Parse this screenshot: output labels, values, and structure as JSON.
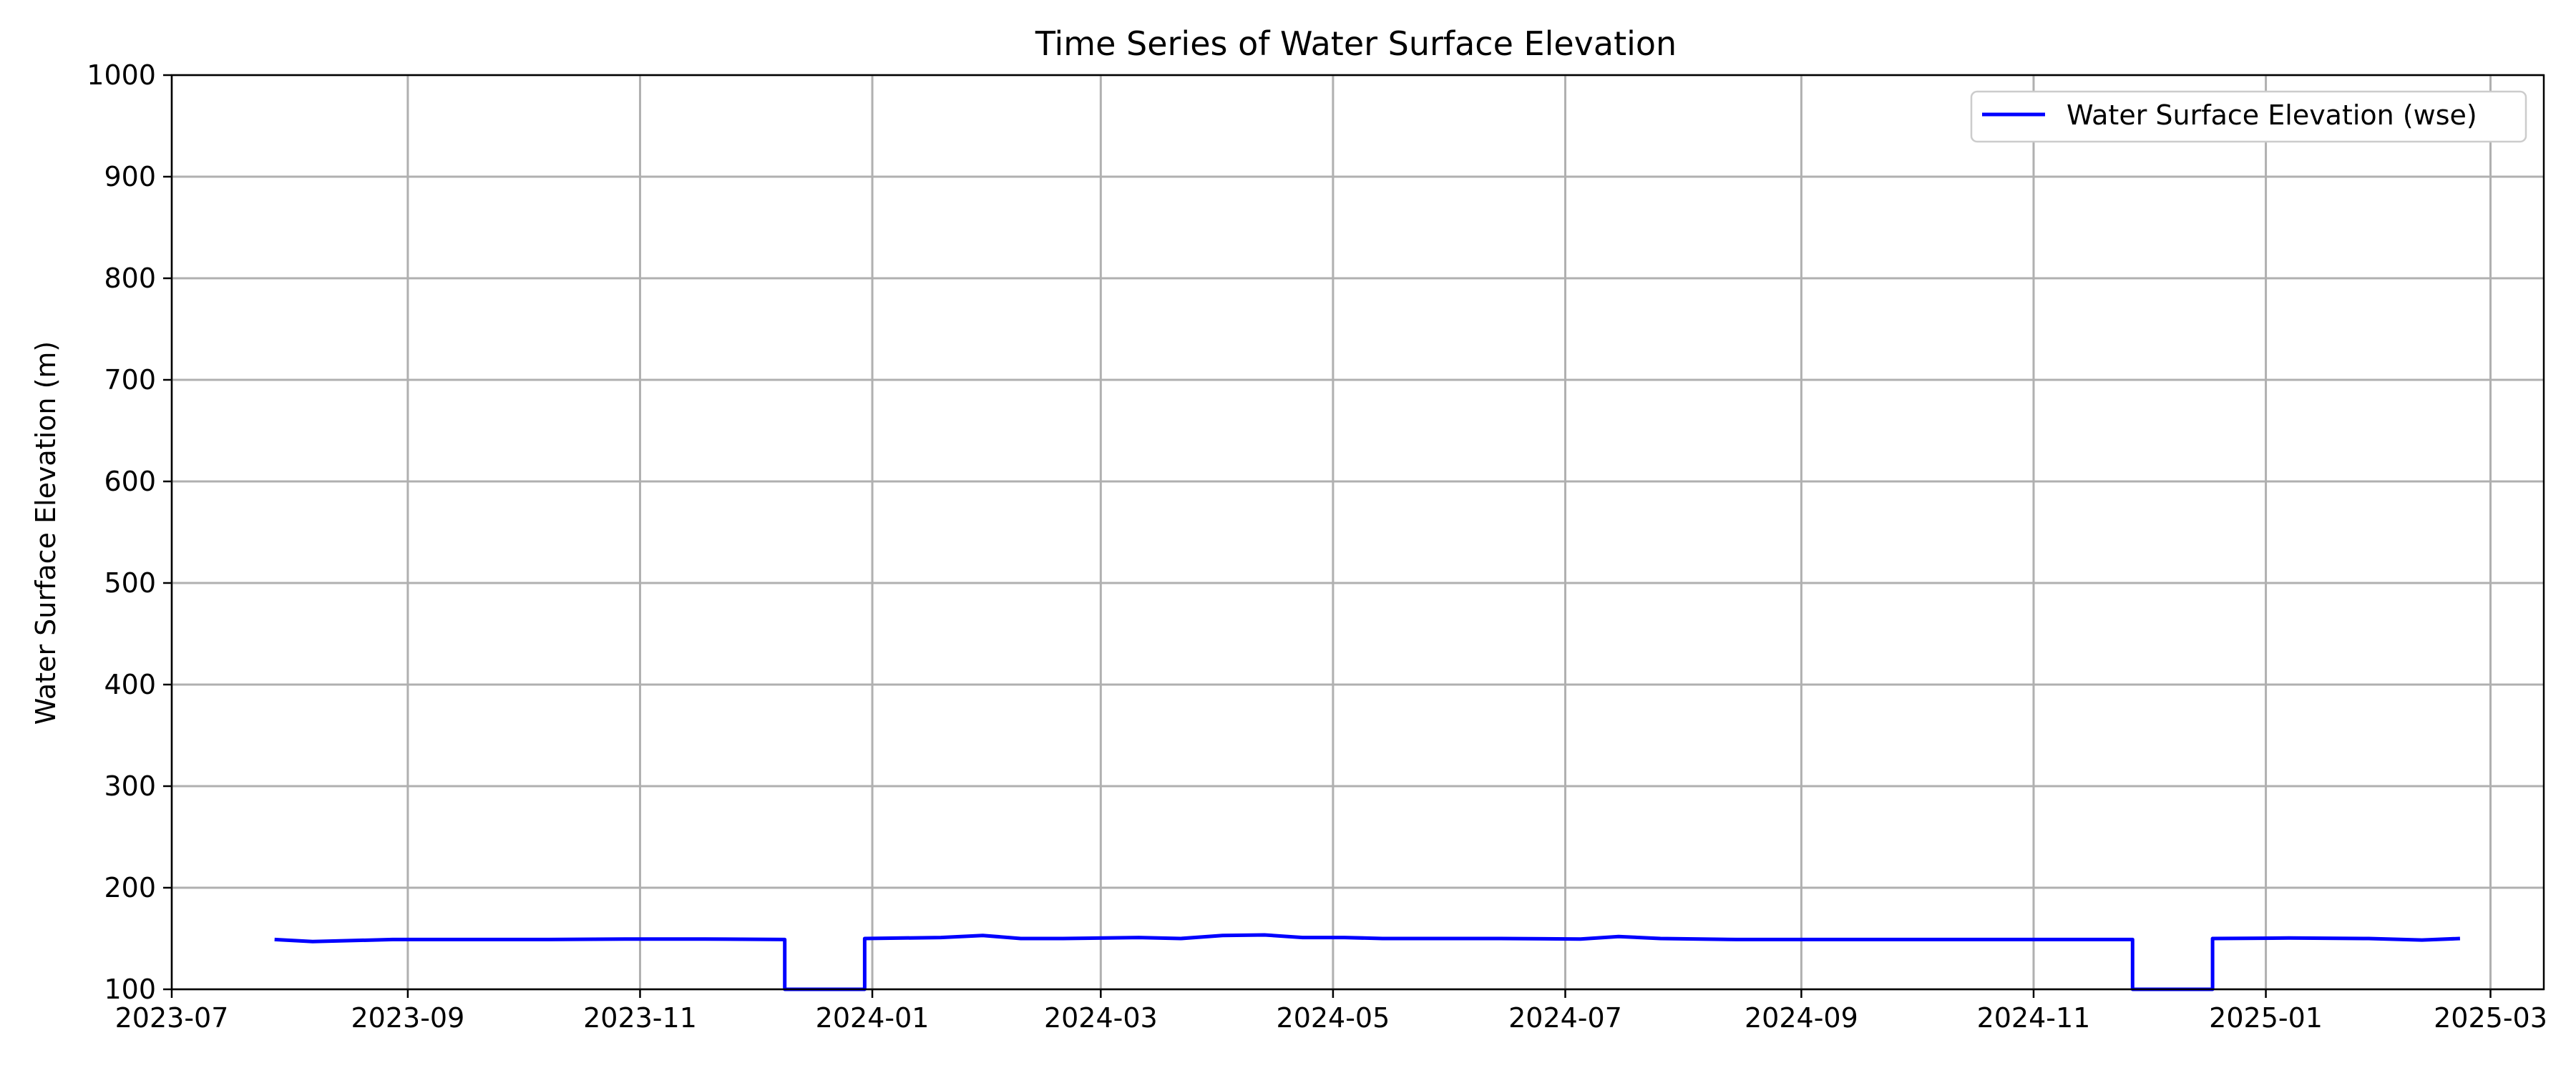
{
  "chart_data": {
    "type": "line",
    "title": "Time Series of Water Surface Elevation",
    "xlabel": "",
    "ylabel": "Water Surface Elevation (m)",
    "xlim": [
      "2023-07-01",
      "2025-03-15"
    ],
    "ylim": [
      100,
      1000
    ],
    "grid": true,
    "legend_position": "top-right",
    "x_ticks": [
      "2023-07",
      "2023-09",
      "2023-11",
      "2024-01",
      "2024-03",
      "2024-05",
      "2024-07",
      "2024-09",
      "2024-11",
      "2025-01",
      "2025-03"
    ],
    "y_ticks": [
      100,
      200,
      300,
      400,
      500,
      600,
      700,
      800,
      900,
      1000
    ],
    "series": [
      {
        "name": "Water Surface Elevation (wse)",
        "color": "#0000ff",
        "x": [
          "2023-07-28",
          "2023-08-07",
          "2023-08-28",
          "2023-09-17",
          "2023-10-08",
          "2023-10-28",
          "2023-11-18",
          "2023-12-09",
          "2023-12-09",
          "2023-12-30",
          "2023-12-30",
          "2024-01-19",
          "2024-01-30",
          "2024-02-09",
          "2024-02-20",
          "2024-03-11",
          "2024-03-22",
          "2024-04-02",
          "2024-04-13",
          "2024-04-23",
          "2024-05-04",
          "2024-05-14",
          "2024-05-25",
          "2024-06-14",
          "2024-07-05",
          "2024-07-15",
          "2024-07-26",
          "2024-08-15",
          "2024-09-05",
          "2024-09-26",
          "2024-10-16",
          "2024-11-06",
          "2024-11-27",
          "2024-11-27",
          "2024-12-18",
          "2024-12-18",
          "2025-01-07",
          "2025-01-28",
          "2025-02-11",
          "2025-02-21"
        ],
        "y": [
          149,
          147,
          149,
          149,
          149,
          149.5,
          149.5,
          149,
          100,
          100,
          150,
          151,
          153,
          150,
          150,
          151,
          150,
          153,
          153.5,
          151,
          151,
          150,
          150,
          150,
          149.5,
          152,
          150,
          149,
          149,
          149,
          149,
          149,
          149,
          100,
          100,
          150,
          150.5,
          150,
          148.5,
          150
        ]
      }
    ]
  }
}
